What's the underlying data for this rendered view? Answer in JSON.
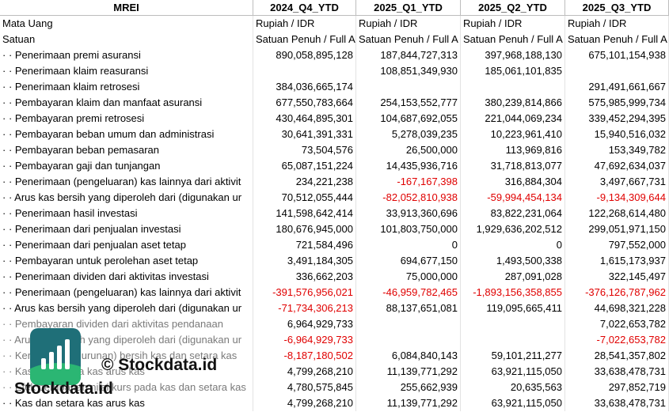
{
  "table": {
    "header": [
      "MREI",
      "2024_Q4_YTD",
      "2025_Q1_YTD",
      "2025_Q2_YTD",
      "2025_Q3_YTD"
    ],
    "meta_rows": [
      [
        "Mata Uang",
        "Rupiah / IDR",
        "Rupiah / IDR",
        "Rupiah / IDR",
        "Rupiah / IDR"
      ],
      [
        "Satuan",
        "Satuan Penuh / Full A",
        "Satuan Penuh / Full A",
        "Satuan Penuh / Full A",
        "Satuan Penuh / Full A"
      ]
    ],
    "rows": [
      [
        "· · Penerimaan premi asuransi",
        "890,058,895,128",
        "187,844,727,313",
        "397,968,188,130",
        "675,101,154,938"
      ],
      [
        "· · Penerimaan klaim reasuransi",
        null,
        "108,851,349,930",
        "185,061,101,835",
        null
      ],
      [
        "· · Penerimaan klaim retrosesi",
        "384,036,665,174",
        null,
        null,
        "291,491,661,667"
      ],
      [
        "· · Pembayaran klaim dan manfaat asuransi",
        "677,550,783,664",
        "254,153,552,777",
        "380,239,814,866",
        "575,985,999,734"
      ],
      [
        "· · Pembayaran premi retrosesi",
        "430,464,895,301",
        "104,687,692,055",
        "221,044,069,234",
        "339,452,294,395"
      ],
      [
        "· · Pembayaran beban umum dan administrasi",
        "30,641,391,331",
        "5,278,039,235",
        "10,223,961,410",
        "15,940,516,032"
      ],
      [
        "· · Pembayaran beban pemasaran",
        "73,504,576",
        "26,500,000",
        "113,969,816",
        "153,349,782"
      ],
      [
        "· · Pembayaran gaji dan tunjangan",
        "65,087,151,224",
        "14,435,936,716",
        "31,718,813,077",
        "47,692,634,037"
      ],
      [
        "· · Penerimaan (pengeluaran) kas lainnya dari aktivit",
        "234,221,238",
        "-167,167,398",
        "316,884,304",
        "3,497,667,731"
      ],
      [
        "· · Arus kas bersih yang diperoleh dari (digunakan ur",
        "70,512,055,444",
        "-82,052,810,938",
        "-59,994,454,134",
        "-9,134,309,644"
      ],
      [
        "· · Penerimaan hasil investasi",
        "141,598,642,414",
        "33,913,360,696",
        "83,822,231,064",
        "122,268,614,480"
      ],
      [
        "· · Penerimaan dari penjualan investasi",
        "180,676,945,000",
        "101,803,750,000",
        "1,929,636,202,512",
        "299,051,971,150"
      ],
      [
        "· · Penerimaan dari penjualan aset tetap",
        "721,584,496",
        "0",
        "0",
        "797,552,000"
      ],
      [
        "· · Pembayaran untuk perolehan aset tetap",
        "3,491,184,305",
        "694,677,150",
        "1,493,500,338",
        "1,615,173,937"
      ],
      [
        "· · Penerimaan dividen dari aktivitas investasi",
        "336,662,203",
        "75,000,000",
        "287,091,028",
        "322,145,497"
      ],
      [
        "· · Penerimaan (pengeluaran) kas lainnya dari aktivit",
        "-391,576,956,021",
        "-46,959,782,465",
        "-1,893,156,358,855",
        "-376,126,787,962"
      ],
      [
        "· · Arus kas bersih yang diperoleh dari (digunakan ur",
        "-71,734,306,213",
        "88,137,651,081",
        "119,095,665,411",
        "44,698,321,228"
      ],
      [
        "· · Pembayaran dividen dari aktivitas pendanaan",
        "6,964,929,733",
        null,
        null,
        "7,022,653,782"
      ],
      [
        "· · Arus kas bersih yang diperoleh dari (digunakan ur",
        "-6,964,929,733",
        null,
        null,
        "-7,022,653,782"
      ],
      [
        "· · Kenaikan (penurunan) bersih kas dan setara kas",
        "-8,187,180,502",
        "6,084,840,143",
        "59,101,211,277",
        "28,541,357,802"
      ],
      [
        "· · Kas dan setara kas arus kas",
        "4,799,268,210",
        "11,139,771,292",
        "63,921,115,050",
        "33,638,478,731"
      ],
      [
        "· · Efek perubahan nilai kurs pada kas dan setara kas",
        "4,780,575,845",
        "255,662,939",
        "20,635,563",
        "297,852,719"
      ],
      [
        "· · Kas dan setara kas arus kas",
        "4,799,268,210",
        "11,139,771,292",
        "63,921,115,050",
        "33,638,478,731"
      ]
    ],
    "muted_rows": [
      17,
      18,
      19,
      20,
      21
    ]
  },
  "watermark": {
    "text": "© Stockdata.id",
    "brand": "Stockdata.id"
  }
}
